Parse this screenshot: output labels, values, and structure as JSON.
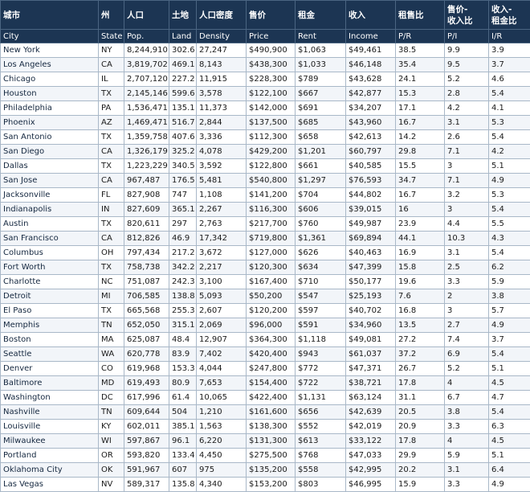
{
  "headers_zh": [
    "城市",
    "州",
    "人口",
    "土地",
    "人口密度",
    "售价",
    "租金",
    "收入",
    "租售比",
    "售价-\n收入比",
    "收入-\n租金比"
  ],
  "headers_en": [
    "City",
    "State",
    "Pop.",
    "Land",
    "Density",
    "Price",
    "Rent",
    "Income",
    "P/R",
    "P/I",
    "I/R"
  ],
  "rows": [
    [
      "New York",
      "NY",
      "8,244,910",
      "302.6",
      "27,247",
      "$490,900",
      "$1,063",
      "$49,461",
      "38.5",
      "9.9",
      "3.9"
    ],
    [
      "Los Angeles",
      "CA",
      "3,819,702",
      "469.1",
      "8,143",
      "$438,300",
      "$1,033",
      "$46,148",
      "35.4",
      "9.5",
      "3.7"
    ],
    [
      "Chicago",
      "IL",
      "2,707,120",
      "227.2",
      "11,915",
      "$228,300",
      "$789",
      "$43,628",
      "24.1",
      "5.2",
      "4.6"
    ],
    [
      "Houston",
      "TX",
      "2,145,146",
      "599.6",
      "3,578",
      "$122,100",
      "$667",
      "$42,877",
      "15.3",
      "2.8",
      "5.4"
    ],
    [
      "Philadelphia",
      "PA",
      "1,536,471",
      "135.1",
      "11,373",
      "$142,000",
      "$691",
      "$34,207",
      "17.1",
      "4.2",
      "4.1"
    ],
    [
      "Phoenix",
      "AZ",
      "1,469,471",
      "516.7",
      "2,844",
      "$137,500",
      "$685",
      "$43,960",
      "16.7",
      "3.1",
      "5.3"
    ],
    [
      "San Antonio",
      "TX",
      "1,359,758",
      "407.6",
      "3,336",
      "$112,300",
      "$658",
      "$42,613",
      "14.2",
      "2.6",
      "5.4"
    ],
    [
      "San Diego",
      "CA",
      "1,326,179",
      "325.2",
      "4,078",
      "$429,200",
      "$1,201",
      "$60,797",
      "29.8",
      "7.1",
      "4.2"
    ],
    [
      "Dallas",
      "TX",
      "1,223,229",
      "340.5",
      "3,592",
      "$122,800",
      "$661",
      "$40,585",
      "15.5",
      "3",
      "5.1"
    ],
    [
      "San Jose",
      "CA",
      "967,487",
      "176.5",
      "5,481",
      "$540,800",
      "$1,297",
      "$76,593",
      "34.7",
      "7.1",
      "4.9"
    ],
    [
      "Jacksonville",
      "FL",
      "827,908",
      "747",
      "1,108",
      "$141,200",
      "$704",
      "$44,802",
      "16.7",
      "3.2",
      "5.3"
    ],
    [
      "Indianapolis",
      "IN",
      "827,609",
      "365.1",
      "2,267",
      "$116,300",
      "$606",
      "$39,015",
      "16",
      "3",
      "5.4"
    ],
    [
      "Austin",
      "TX",
      "820,611",
      "297",
      "2,763",
      "$217,700",
      "$760",
      "$49,987",
      "23.9",
      "4.4",
      "5.5"
    ],
    [
      "San Francisco",
      "CA",
      "812,826",
      "46.9",
      "17,342",
      "$719,800",
      "$1,361",
      "$69,894",
      "44.1",
      "10.3",
      "4.3"
    ],
    [
      "Columbus",
      "OH",
      "797,434",
      "217.2",
      "3,672",
      "$127,000",
      "$626",
      "$40,463",
      "16.9",
      "3.1",
      "5.4"
    ],
    [
      "Fort Worth",
      "TX",
      "758,738",
      "342.2",
      "2,217",
      "$120,300",
      "$634",
      "$47,399",
      "15.8",
      "2.5",
      "6.2"
    ],
    [
      "Charlotte",
      "NC",
      "751,087",
      "242.3",
      "3,100",
      "$167,400",
      "$710",
      "$50,177",
      "19.6",
      "3.3",
      "5.9"
    ],
    [
      "Detroit",
      "MI",
      "706,585",
      "138.8",
      "5,093",
      "$50,200",
      "$547",
      "$25,193",
      "7.6",
      "2",
      "3.8"
    ],
    [
      "El Paso",
      "TX",
      "665,568",
      "255.3",
      "2,607",
      "$120,200",
      "$597",
      "$40,702",
      "16.8",
      "3",
      "5.7"
    ],
    [
      "Memphis",
      "TN",
      "652,050",
      "315.1",
      "2,069",
      "$96,000",
      "$591",
      "$34,960",
      "13.5",
      "2.7",
      "4.9"
    ],
    [
      "Boston",
      "MA",
      "625,087",
      "48.4",
      "12,907",
      "$364,300",
      "$1,118",
      "$49,081",
      "27.2",
      "7.4",
      "3.7"
    ],
    [
      "Seattle",
      "WA",
      "620,778",
      "83.9",
      "7,402",
      "$420,400",
      "$943",
      "$61,037",
      "37.2",
      "6.9",
      "5.4"
    ],
    [
      "Denver",
      "CO",
      "619,968",
      "153.3",
      "4,044",
      "$247,800",
      "$772",
      "$47,371",
      "26.7",
      "5.2",
      "5.1"
    ],
    [
      "Baltimore",
      "MD",
      "619,493",
      "80.9",
      "7,653",
      "$154,400",
      "$722",
      "$38,721",
      "17.8",
      "4",
      "4.5"
    ],
    [
      "Washington",
      "DC",
      "617,996",
      "61.4",
      "10,065",
      "$422,400",
      "$1,131",
      "$63,124",
      "31.1",
      "6.7",
      "4.7"
    ],
    [
      "Nashville",
      "TN",
      "609,644",
      "504",
      "1,210",
      "$161,600",
      "$656",
      "$42,639",
      "20.5",
      "3.8",
      "5.4"
    ],
    [
      "Louisville",
      "KY",
      "602,011",
      "385.1",
      "1,563",
      "$138,300",
      "$552",
      "$42,019",
      "20.9",
      "3.3",
      "6.3"
    ],
    [
      "Milwaukee",
      "WI",
      "597,867",
      "96.1",
      "6,220",
      "$131,300",
      "$613",
      "$33,122",
      "17.8",
      "4",
      "4.5"
    ],
    [
      "Portland",
      "OR",
      "593,820",
      "133.4",
      "4,450",
      "$275,500",
      "$768",
      "$47,033",
      "29.9",
      "5.9",
      "5.1"
    ],
    [
      "Oklahoma City",
      "OK",
      "591,967",
      "607",
      "975",
      "$135,200",
      "$558",
      "$42,995",
      "20.2",
      "3.1",
      "6.4"
    ],
    [
      "Las Vegas",
      "NV",
      "589,317",
      "135.8",
      "4,340",
      "$153,200",
      "$803",
      "$46,995",
      "15.9",
      "3.3",
      "4.9"
    ]
  ]
}
